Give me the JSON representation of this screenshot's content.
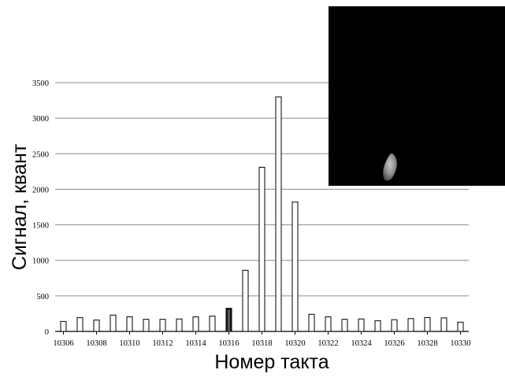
{
  "chart_data": {
    "type": "bar",
    "xlabel": "Номер такта",
    "ylabel": "Сигнал, квант",
    "ylim": [
      0,
      3500
    ],
    "yticks": [
      0,
      500,
      1000,
      1500,
      2000,
      2500,
      3000,
      3500
    ],
    "grid": true,
    "categories": [
      10306,
      10307,
      10308,
      10309,
      10310,
      10311,
      10312,
      10313,
      10314,
      10315,
      10316,
      10317,
      10318,
      10319,
      10320,
      10321,
      10322,
      10323,
      10324,
      10325,
      10326,
      10327,
      10328,
      10329,
      10330
    ],
    "xtick_labels": [
      "10306",
      "10308",
      "10310",
      "10312",
      "10314",
      "10316",
      "10318",
      "10320",
      "10322",
      "10324",
      "10326",
      "10328",
      "10330"
    ],
    "values": [
      140,
      195,
      160,
      230,
      205,
      170,
      170,
      175,
      205,
      215,
      325,
      860,
      2310,
      3300,
      1820,
      240,
      205,
      170,
      175,
      150,
      165,
      180,
      195,
      190,
      130
    ],
    "highlight_category": 10316,
    "colors": {
      "bar_fill": "#ffffff",
      "bar_stroke": "#000000",
      "highlight_fill": "#1a1a1a",
      "grid": "#8c8c8c"
    }
  },
  "inset": {
    "kind": "dark image with a small bright blob",
    "background": "#000000",
    "blob_color": "#9a9a9a"
  }
}
